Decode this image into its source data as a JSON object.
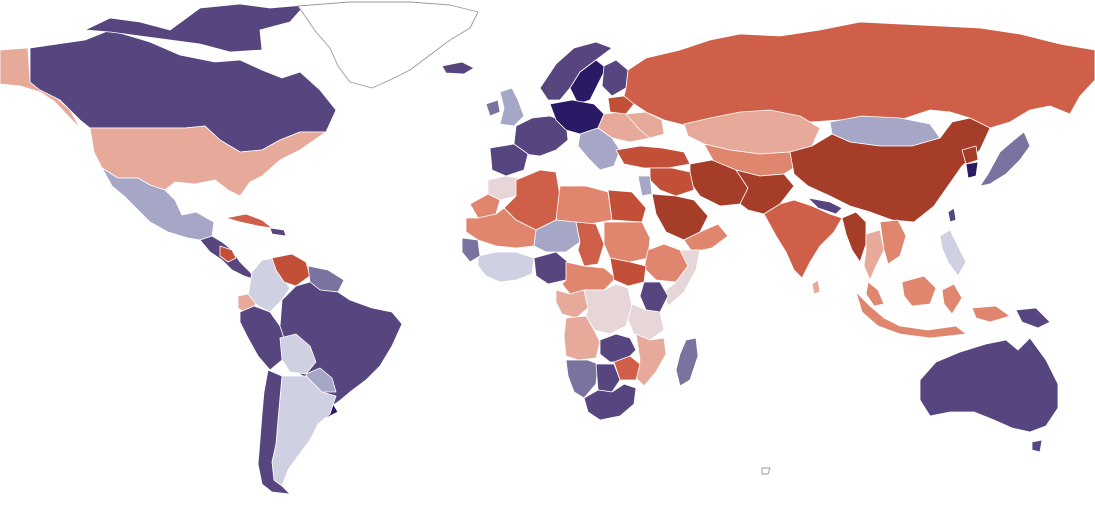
{
  "map": {
    "type": "choropleth-world",
    "title": "",
    "legend": "none",
    "palette": {
      "deep_purple": "#2a1a66",
      "purple": "#574580",
      "mid_purple": "#7b739f",
      "lavender": "#a6a7c6",
      "pale_lavender": "#cfd0e2",
      "no_data": "#ffffff",
      "pale_pink": "#e6d6d8",
      "salmon": "#e7a99a",
      "coral": "#e0866e",
      "orange_red": "#cf5f48",
      "red": "#c24f38",
      "dark_red": "#a53d28"
    },
    "regions": [
      {
        "name": "alaska",
        "color_class": "salmon"
      },
      {
        "name": "canada",
        "color_class": "purple"
      },
      {
        "name": "canadian-arctic-islands",
        "color_class": "purple"
      },
      {
        "name": "greenland",
        "color_class": "no_data"
      },
      {
        "name": "iceland",
        "color_class": "purple"
      },
      {
        "name": "united-states",
        "color_class": "salmon"
      },
      {
        "name": "mexico",
        "color_class": "lavender"
      },
      {
        "name": "central-america",
        "color_class": "purple"
      },
      {
        "name": "nicaragua",
        "color_class": "red"
      },
      {
        "name": "cuba",
        "color_class": "orange_red"
      },
      {
        "name": "caribbean-islands",
        "color_class": "purple"
      },
      {
        "name": "colombia",
        "color_class": "pale_lavender"
      },
      {
        "name": "venezuela",
        "color_class": "red"
      },
      {
        "name": "guianas",
        "color_class": "mid_purple"
      },
      {
        "name": "ecuador",
        "color_class": "salmon"
      },
      {
        "name": "peru",
        "color_class": "purple"
      },
      {
        "name": "brazil",
        "color_class": "purple"
      },
      {
        "name": "bolivia",
        "color_class": "pale_lavender"
      },
      {
        "name": "paraguay",
        "color_class": "lavender"
      },
      {
        "name": "uruguay",
        "color_class": "deep_purple"
      },
      {
        "name": "argentina",
        "color_class": "pale_lavender"
      },
      {
        "name": "chile",
        "color_class": "purple"
      },
      {
        "name": "united-kingdom",
        "color_class": "lavender"
      },
      {
        "name": "ireland",
        "color_class": "mid_purple"
      },
      {
        "name": "scandinavia",
        "color_class": "purple"
      },
      {
        "name": "sweden",
        "color_class": "deep_purple"
      },
      {
        "name": "finland",
        "color_class": "purple"
      },
      {
        "name": "western-europe",
        "color_class": "purple"
      },
      {
        "name": "iberia",
        "color_class": "purple"
      },
      {
        "name": "central-europe",
        "color_class": "deep_purple"
      },
      {
        "name": "eastern-europe",
        "color_class": "salmon"
      },
      {
        "name": "balkans",
        "color_class": "lavender"
      },
      {
        "name": "belarus",
        "color_class": "red"
      },
      {
        "name": "ukraine",
        "color_class": "salmon"
      },
      {
        "name": "russia",
        "color_class": "orange_red"
      },
      {
        "name": "turkey",
        "color_class": "red"
      },
      {
        "name": "kazakhstan",
        "color_class": "salmon"
      },
      {
        "name": "central-asia",
        "color_class": "coral"
      },
      {
        "name": "mongolia",
        "color_class": "lavender"
      },
      {
        "name": "china",
        "color_class": "dark_red"
      },
      {
        "name": "north-korea",
        "color_class": "dark_red"
      },
      {
        "name": "south-korea",
        "color_class": "deep_purple"
      },
      {
        "name": "japan",
        "color_class": "mid_purple"
      },
      {
        "name": "taiwan",
        "color_class": "purple"
      },
      {
        "name": "iran",
        "color_class": "dark_red"
      },
      {
        "name": "afghanistan-pakistan",
        "color_class": "dark_red"
      },
      {
        "name": "iraq-syria",
        "color_class": "red"
      },
      {
        "name": "israel-jordan",
        "color_class": "lavender"
      },
      {
        "name": "saudi-arabia",
        "color_class": "dark_red"
      },
      {
        "name": "arabian-peninsula-south",
        "color_class": "coral"
      },
      {
        "name": "india",
        "color_class": "orange_red"
      },
      {
        "name": "nepal-bangladesh",
        "color_class": "purple"
      },
      {
        "name": "sri-lanka",
        "color_class": "salmon"
      },
      {
        "name": "myanmar",
        "color_class": "dark_red"
      },
      {
        "name": "thailand",
        "color_class": "salmon"
      },
      {
        "name": "indochina",
        "color_class": "coral"
      },
      {
        "name": "malaysia",
        "color_class": "coral"
      },
      {
        "name": "indonesia",
        "color_class": "coral"
      },
      {
        "name": "philippines",
        "color_class": "pale_lavender"
      },
      {
        "name": "papua-new-guinea",
        "color_class": "purple"
      },
      {
        "name": "australia",
        "color_class": "purple"
      },
      {
        "name": "tasmania",
        "color_class": "purple"
      },
      {
        "name": "new-zealand",
        "color_class": "no_data"
      },
      {
        "name": "morocco",
        "color_class": "pale_pink"
      },
      {
        "name": "western-sahara",
        "color_class": "coral"
      },
      {
        "name": "algeria",
        "color_class": "orange_red"
      },
      {
        "name": "libya",
        "color_class": "coral"
      },
      {
        "name": "egypt",
        "color_class": "red"
      },
      {
        "name": "mauritania-mali",
        "color_class": "coral"
      },
      {
        "name": "niger",
        "color_class": "lavender"
      },
      {
        "name": "chad",
        "color_class": "orange_red"
      },
      {
        "name": "sudan",
        "color_class": "coral"
      },
      {
        "name": "ethiopia",
        "color_class": "coral"
      },
      {
        "name": "somalia",
        "color_class": "pale_pink"
      },
      {
        "name": "west-africa-coast",
        "color_class": "pale_lavender"
      },
      {
        "name": "senegal-guinea",
        "color_class": "mid_purple"
      },
      {
        "name": "nigeria",
        "color_class": "purple"
      },
      {
        "name": "cameroon-car",
        "color_class": "coral"
      },
      {
        "name": "south-sudan",
        "color_class": "red"
      },
      {
        "name": "kenya",
        "color_class": "purple"
      },
      {
        "name": "gabon-congo",
        "color_class": "salmon"
      },
      {
        "name": "dr-congo",
        "color_class": "pale_pink"
      },
      {
        "name": "tanzania",
        "color_class": "pale_pink"
      },
      {
        "name": "angola",
        "color_class": "salmon"
      },
      {
        "name": "zambia",
        "color_class": "purple"
      },
      {
        "name": "malawi-mozambique",
        "color_class": "salmon"
      },
      {
        "name": "zimbabwe",
        "color_class": "orange_red"
      },
      {
        "name": "namibia",
        "color_class": "mid_purple"
      },
      {
        "name": "botswana",
        "color_class": "purple"
      },
      {
        "name": "south-africa",
        "color_class": "purple"
      },
      {
        "name": "madagascar",
        "color_class": "mid_purple"
      }
    ]
  }
}
